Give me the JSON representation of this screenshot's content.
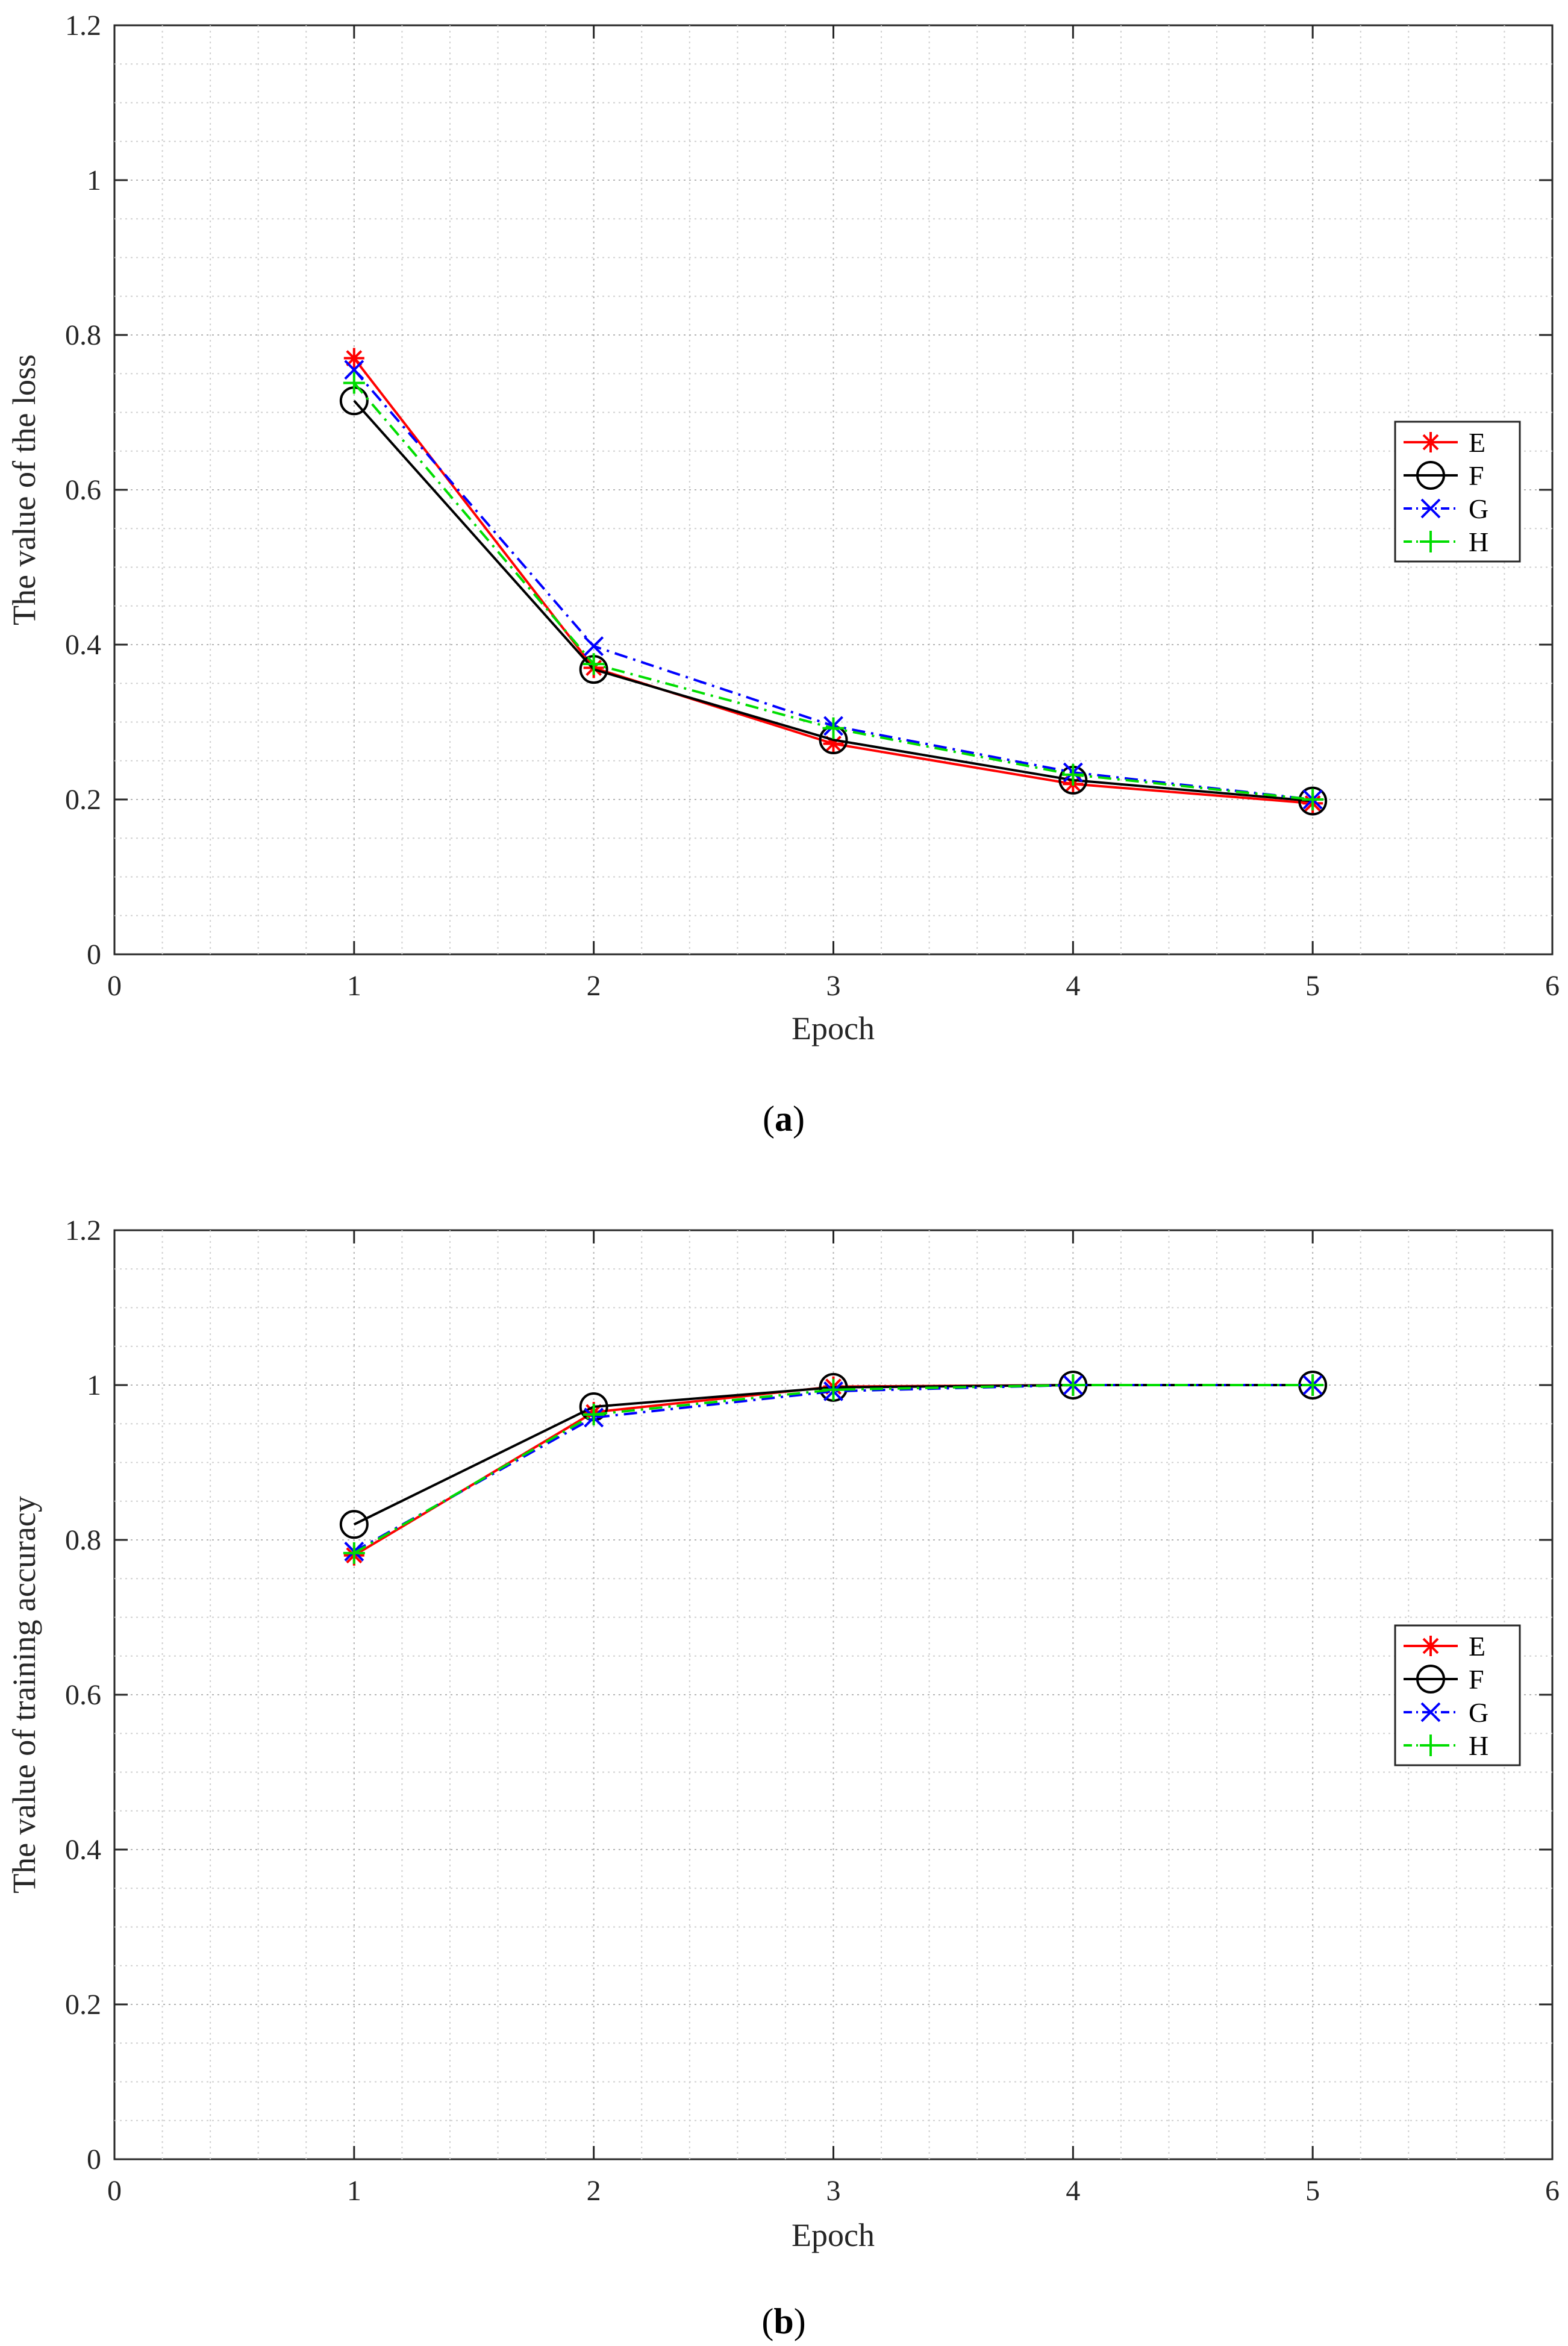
{
  "figure": {
    "captions": [
      "a",
      "b"
    ]
  },
  "chart_data": [
    {
      "type": "line",
      "panel": "a",
      "xlabel": "Epoch",
      "ylabel": "The value of the loss",
      "xlim": [
        0,
        6
      ],
      "ylim": [
        0,
        1.2
      ],
      "x_ticks": [
        0,
        1,
        2,
        3,
        4,
        5,
        6
      ],
      "y_ticks": [
        0,
        0.2,
        0.4,
        0.6,
        0.8,
        1,
        1.2
      ],
      "x_tick_labels": [
        "0",
        "1",
        "2",
        "3",
        "4",
        "5",
        "6"
      ],
      "y_tick_labels": [
        "0",
        "0.2",
        "0.4",
        "0.6",
        "0.8",
        "1",
        "1.2"
      ],
      "grid": true,
      "minor_grid": true,
      "legend_position": "right",
      "x": [
        1,
        2,
        3,
        4,
        5
      ],
      "series": [
        {
          "name": "E",
          "values": [
            0.77,
            0.37,
            0.272,
            0.22,
            0.195
          ],
          "color": "#ff0000",
          "marker": "star",
          "line": "solid"
        },
        {
          "name": "F",
          "values": [
            0.715,
            0.368,
            0.277,
            0.225,
            0.198
          ],
          "color": "#000000",
          "marker": "circle",
          "line": "solid"
        },
        {
          "name": "G",
          "values": [
            0.755,
            0.398,
            0.295,
            0.235,
            0.2
          ],
          "color": "#0000ff",
          "marker": "x",
          "line": "dashdot"
        },
        {
          "name": "H",
          "values": [
            0.738,
            0.375,
            0.292,
            0.232,
            0.2
          ],
          "color": "#00dd00",
          "marker": "plus",
          "line": "dashdot"
        }
      ]
    },
    {
      "type": "line",
      "panel": "b",
      "xlabel": "Epoch",
      "ylabel": "The value of training accuracy",
      "xlim": [
        0,
        6
      ],
      "ylim": [
        0,
        1.2
      ],
      "x_ticks": [
        0,
        1,
        2,
        3,
        4,
        5,
        6
      ],
      "y_ticks": [
        0,
        0.2,
        0.4,
        0.6,
        0.8,
        1,
        1.2
      ],
      "x_tick_labels": [
        "0",
        "1",
        "2",
        "3",
        "4",
        "5",
        "6"
      ],
      "y_tick_labels": [
        "0",
        "0.2",
        "0.4",
        "0.6",
        "0.8",
        "1",
        "1.2"
      ],
      "grid": true,
      "minor_grid": true,
      "legend_position": "right",
      "x": [
        1,
        2,
        3,
        4,
        5
      ],
      "series": [
        {
          "name": "E",
          "values": [
            0.78,
            0.965,
            0.998,
            1.0,
            1.0
          ],
          "color": "#ff0000",
          "marker": "star",
          "line": "solid"
        },
        {
          "name": "F",
          "values": [
            0.82,
            0.972,
            0.997,
            1.0,
            1.0
          ],
          "color": "#000000",
          "marker": "circle",
          "line": "solid"
        },
        {
          "name": "G",
          "values": [
            0.785,
            0.958,
            0.992,
            1.0,
            1.0
          ],
          "color": "#0000ff",
          "marker": "x",
          "line": "dashdot"
        },
        {
          "name": "H",
          "values": [
            0.783,
            0.962,
            0.994,
            1.0,
            1.0
          ],
          "color": "#00dd00",
          "marker": "plus",
          "line": "dashdot"
        }
      ]
    }
  ]
}
